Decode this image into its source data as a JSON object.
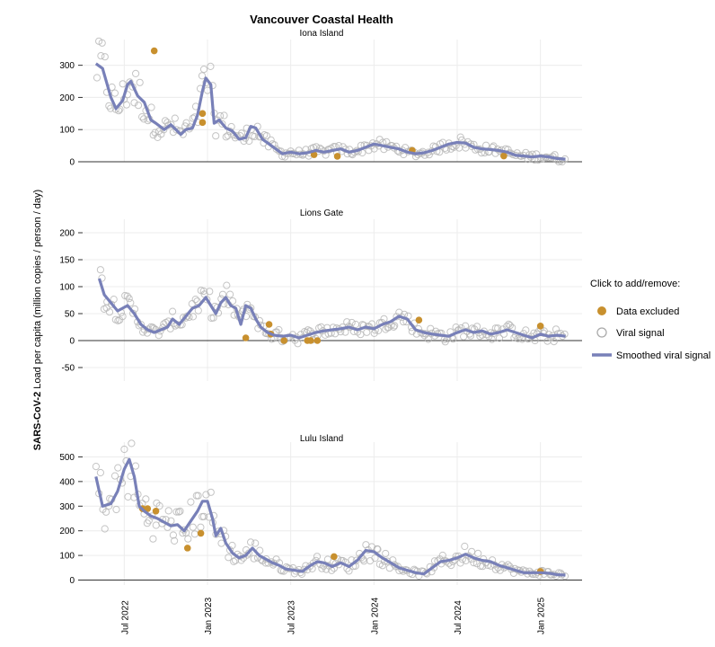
{
  "chart_data": {
    "type": "scatter",
    "title": "Vancouver Coastal Health",
    "ylabel_bold": "SARS-CoV-2",
    "ylabel_rest": " Load per capita (million copies / person / day)",
    "x_range": [
      2022.25,
      2025.25
    ],
    "x_ticks": [
      {
        "label": "Jul 2022",
        "value": 2022.5
      },
      {
        "label": "Jan 2023",
        "value": 2023.0
      },
      {
        "label": "Jul 2023",
        "value": 2023.5
      },
      {
        "label": "Jan 2024",
        "value": 2024.0
      },
      {
        "label": "Jul 2024",
        "value": 2024.5
      },
      {
        "label": "Jan 2025",
        "value": 2025.0
      }
    ],
    "legend": {
      "title": "Click to add/remove:",
      "items": [
        {
          "label": "Data excluded",
          "kind": "dot",
          "color": "#c8902e"
        },
        {
          "label": "Viral signal",
          "kind": "circle",
          "color": "#aaaaaa"
        },
        {
          "label": "Smoothed viral signal",
          "kind": "line",
          "color": "#7880b8"
        }
      ]
    },
    "colors": {
      "excluded": "#c8902e",
      "signal": "#b5b5b5",
      "smooth": "#7880b8"
    },
    "panels": [
      {
        "name": "Iona Island",
        "ylim": [
          0,
          380
        ],
        "yticks": [
          "0",
          "100",
          "200",
          "300"
        ],
        "ytick_values": [
          0,
          100,
          200,
          300
        ],
        "smooth": [
          [
            2022.33,
            305
          ],
          [
            2022.37,
            290
          ],
          [
            2022.42,
            200
          ],
          [
            2022.45,
            165
          ],
          [
            2022.49,
            190
          ],
          [
            2022.52,
            240
          ],
          [
            2022.54,
            250
          ],
          [
            2022.58,
            205
          ],
          [
            2022.62,
            185
          ],
          [
            2022.66,
            130
          ],
          [
            2022.69,
            120
          ],
          [
            2022.74,
            100
          ],
          [
            2022.78,
            115
          ],
          [
            2022.81,
            100
          ],
          [
            2022.84,
            85
          ],
          [
            2022.87,
            100
          ],
          [
            2022.91,
            105
          ],
          [
            2022.94,
            145
          ],
          [
            2022.97,
            220
          ],
          [
            2022.99,
            260
          ],
          [
            2023.02,
            240
          ],
          [
            2023.04,
            120
          ],
          [
            2023.07,
            130
          ],
          [
            2023.11,
            105
          ],
          [
            2023.15,
            95
          ],
          [
            2023.19,
            70
          ],
          [
            2023.23,
            75
          ],
          [
            2023.26,
            110
          ],
          [
            2023.29,
            105
          ],
          [
            2023.33,
            70
          ],
          [
            2023.37,
            55
          ],
          [
            2023.41,
            40
          ],
          [
            2023.45,
            25
          ],
          [
            2023.5,
            30
          ],
          [
            2023.55,
            25
          ],
          [
            2023.6,
            28
          ],
          [
            2023.65,
            35
          ],
          [
            2023.7,
            30
          ],
          [
            2023.75,
            35
          ],
          [
            2023.8,
            40
          ],
          [
            2023.85,
            30
          ],
          [
            2023.9,
            35
          ],
          [
            2023.95,
            45
          ],
          [
            2024.0,
            55
          ],
          [
            2024.05,
            50
          ],
          [
            2024.1,
            45
          ],
          [
            2024.15,
            40
          ],
          [
            2024.2,
            30
          ],
          [
            2024.25,
            25
          ],
          [
            2024.3,
            28
          ],
          [
            2024.35,
            35
          ],
          [
            2024.4,
            45
          ],
          [
            2024.45,
            55
          ],
          [
            2024.5,
            60
          ],
          [
            2024.55,
            58
          ],
          [
            2024.6,
            45
          ],
          [
            2024.65,
            40
          ],
          [
            2024.7,
            38
          ],
          [
            2024.75,
            35
          ],
          [
            2024.8,
            30
          ],
          [
            2024.85,
            20
          ],
          [
            2024.9,
            18
          ],
          [
            2024.95,
            15
          ],
          [
            2025.0,
            18
          ],
          [
            2025.05,
            15
          ],
          [
            2025.1,
            10
          ],
          [
            2025.15,
            8
          ]
        ],
        "excluded": [
          [
            2022.68,
            345
          ],
          [
            2022.97,
            150
          ],
          [
            2022.97,
            122
          ],
          [
            2023.64,
            22
          ],
          [
            2023.78,
            17
          ],
          [
            2024.23,
            35
          ],
          [
            2024.78,
            18
          ]
        ]
      },
      {
        "name": "Lions Gate",
        "ylim": [
          -75,
          225
        ],
        "yticks": [
          "-50",
          "0",
          "50",
          "100",
          "150",
          "200"
        ],
        "ytick_values": [
          -50,
          0,
          50,
          100,
          150,
          200
        ],
        "smooth": [
          [
            2022.35,
            115
          ],
          [
            2022.38,
            85
          ],
          [
            2022.42,
            70
          ],
          [
            2022.46,
            55
          ],
          [
            2022.49,
            60
          ],
          [
            2022.52,
            65
          ],
          [
            2022.56,
            50
          ],
          [
            2022.6,
            30
          ],
          [
            2022.64,
            20
          ],
          [
            2022.68,
            15
          ],
          [
            2022.72,
            20
          ],
          [
            2022.76,
            25
          ],
          [
            2022.79,
            40
          ],
          [
            2022.83,
            30
          ],
          [
            2022.87,
            45
          ],
          [
            2022.91,
            60
          ],
          [
            2022.95,
            65
          ],
          [
            2022.99,
            80
          ],
          [
            2023.02,
            65
          ],
          [
            2023.05,
            50
          ],
          [
            2023.08,
            70
          ],
          [
            2023.11,
            80
          ],
          [
            2023.14,
            65
          ],
          [
            2023.17,
            60
          ],
          [
            2023.2,
            30
          ],
          [
            2023.23,
            65
          ],
          [
            2023.26,
            60
          ],
          [
            2023.29,
            40
          ],
          [
            2023.32,
            25
          ],
          [
            2023.36,
            15
          ],
          [
            2023.4,
            10
          ],
          [
            2023.45,
            8
          ],
          [
            2023.5,
            10
          ],
          [
            2023.55,
            5
          ],
          [
            2023.6,
            10
          ],
          [
            2023.65,
            15
          ],
          [
            2023.7,
            18
          ],
          [
            2023.75,
            20
          ],
          [
            2023.8,
            22
          ],
          [
            2023.85,
            25
          ],
          [
            2023.9,
            20
          ],
          [
            2023.95,
            25
          ],
          [
            2024.0,
            22
          ],
          [
            2024.05,
            30
          ],
          [
            2024.1,
            35
          ],
          [
            2024.15,
            45
          ],
          [
            2024.2,
            40
          ],
          [
            2024.25,
            20
          ],
          [
            2024.3,
            15
          ],
          [
            2024.35,
            12
          ],
          [
            2024.4,
            10
          ],
          [
            2024.45,
            8
          ],
          [
            2024.5,
            15
          ],
          [
            2024.55,
            20
          ],
          [
            2024.6,
            15
          ],
          [
            2024.65,
            18
          ],
          [
            2024.7,
            12
          ],
          [
            2024.75,
            15
          ],
          [
            2024.8,
            20
          ],
          [
            2024.85,
            15
          ],
          [
            2024.9,
            10
          ],
          [
            2024.95,
            5
          ],
          [
            2025.0,
            12
          ],
          [
            2025.05,
            8
          ],
          [
            2025.1,
            10
          ],
          [
            2025.15,
            8
          ]
        ],
        "excluded": [
          [
            2023.23,
            5
          ],
          [
            2023.37,
            30
          ],
          [
            2023.38,
            12
          ],
          [
            2023.46,
            0
          ],
          [
            2023.6,
            0
          ],
          [
            2023.62,
            0
          ],
          [
            2023.66,
            0
          ],
          [
            2024.27,
            38
          ],
          [
            2025.0,
            27
          ]
        ]
      },
      {
        "name": "Lulu Island",
        "ylim": [
          -20,
          560
        ],
        "yticks": [
          "0",
          "100",
          "200",
          "300",
          "400",
          "500"
        ],
        "ytick_values": [
          0,
          100,
          200,
          300,
          400,
          500
        ],
        "smooth": [
          [
            2022.33,
            420
          ],
          [
            2022.37,
            300
          ],
          [
            2022.42,
            310
          ],
          [
            2022.46,
            360
          ],
          [
            2022.5,
            450
          ],
          [
            2022.53,
            490
          ],
          [
            2022.56,
            420
          ],
          [
            2022.59,
            300
          ],
          [
            2022.62,
            280
          ],
          [
            2022.66,
            260
          ],
          [
            2022.7,
            250
          ],
          [
            2022.74,
            235
          ],
          [
            2022.78,
            220
          ],
          [
            2022.82,
            225
          ],
          [
            2022.86,
            200
          ],
          [
            2022.9,
            240
          ],
          [
            2022.94,
            280
          ],
          [
            2022.97,
            320
          ],
          [
            2023.0,
            320
          ],
          [
            2023.03,
            250
          ],
          [
            2023.05,
            180
          ],
          [
            2023.08,
            210
          ],
          [
            2023.11,
            150
          ],
          [
            2023.15,
            110
          ],
          [
            2023.19,
            90
          ],
          [
            2023.23,
            100
          ],
          [
            2023.27,
            130
          ],
          [
            2023.31,
            100
          ],
          [
            2023.35,
            85
          ],
          [
            2023.39,
            70
          ],
          [
            2023.43,
            60
          ],
          [
            2023.47,
            45
          ],
          [
            2023.52,
            40
          ],
          [
            2023.57,
            35
          ],
          [
            2023.62,
            60
          ],
          [
            2023.66,
            75
          ],
          [
            2023.7,
            70
          ],
          [
            2023.75,
            55
          ],
          [
            2023.8,
            70
          ],
          [
            2023.85,
            55
          ],
          [
            2023.9,
            80
          ],
          [
            2023.95,
            120
          ],
          [
            2024.0,
            115
          ],
          [
            2024.05,
            90
          ],
          [
            2024.1,
            70
          ],
          [
            2024.15,
            50
          ],
          [
            2024.2,
            40
          ],
          [
            2024.25,
            30
          ],
          [
            2024.3,
            25
          ],
          [
            2024.35,
            50
          ],
          [
            2024.4,
            75
          ],
          [
            2024.45,
            80
          ],
          [
            2024.5,
            90
          ],
          [
            2024.55,
            105
          ],
          [
            2024.6,
            90
          ],
          [
            2024.65,
            80
          ],
          [
            2024.7,
            75
          ],
          [
            2024.75,
            60
          ],
          [
            2024.8,
            50
          ],
          [
            2024.85,
            40
          ],
          [
            2024.9,
            30
          ],
          [
            2024.95,
            30
          ],
          [
            2025.0,
            30
          ],
          [
            2025.05,
            28
          ],
          [
            2025.1,
            22
          ],
          [
            2025.15,
            20
          ]
        ],
        "excluded": [
          [
            2022.61,
            290
          ],
          [
            2022.64,
            290
          ],
          [
            2022.69,
            280
          ],
          [
            2022.88,
            130
          ],
          [
            2022.96,
            190
          ],
          [
            2023.76,
            95
          ],
          [
            2025.0,
            35
          ]
        ]
      }
    ]
  }
}
